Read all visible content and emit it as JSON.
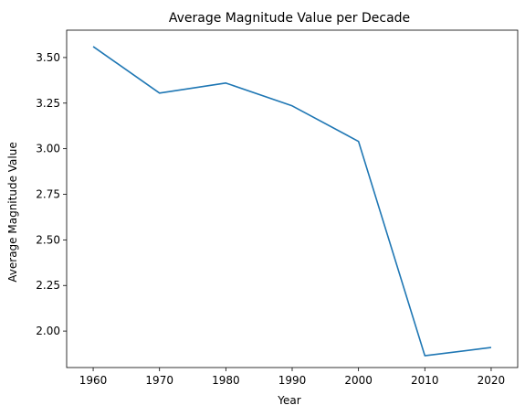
{
  "chart_data": {
    "type": "line",
    "title": "Average Magnitude Value per Decade",
    "xlabel": "Year",
    "ylabel": "Average Magnitude Value",
    "x": [
      1960,
      1970,
      1980,
      1990,
      2000,
      2010,
      2020
    ],
    "series": [
      {
        "values": [
          3.56,
          3.305,
          3.36,
          3.235,
          3.04,
          1.865,
          1.91
        ]
      }
    ],
    "xticks": [
      "1960",
      "1970",
      "1980",
      "1990",
      "2000",
      "2010",
      "2020"
    ],
    "yticks": [
      "2.00",
      "2.25",
      "2.50",
      "2.75",
      "3.00",
      "3.25",
      "3.50"
    ],
    "xlim": [
      1956,
      2024
    ],
    "ylim": [
      1.8,
      3.65
    ],
    "grid": false,
    "colors": {
      "line": "#1f77b4",
      "axis": "#000000",
      "background": "#ffffff"
    }
  }
}
